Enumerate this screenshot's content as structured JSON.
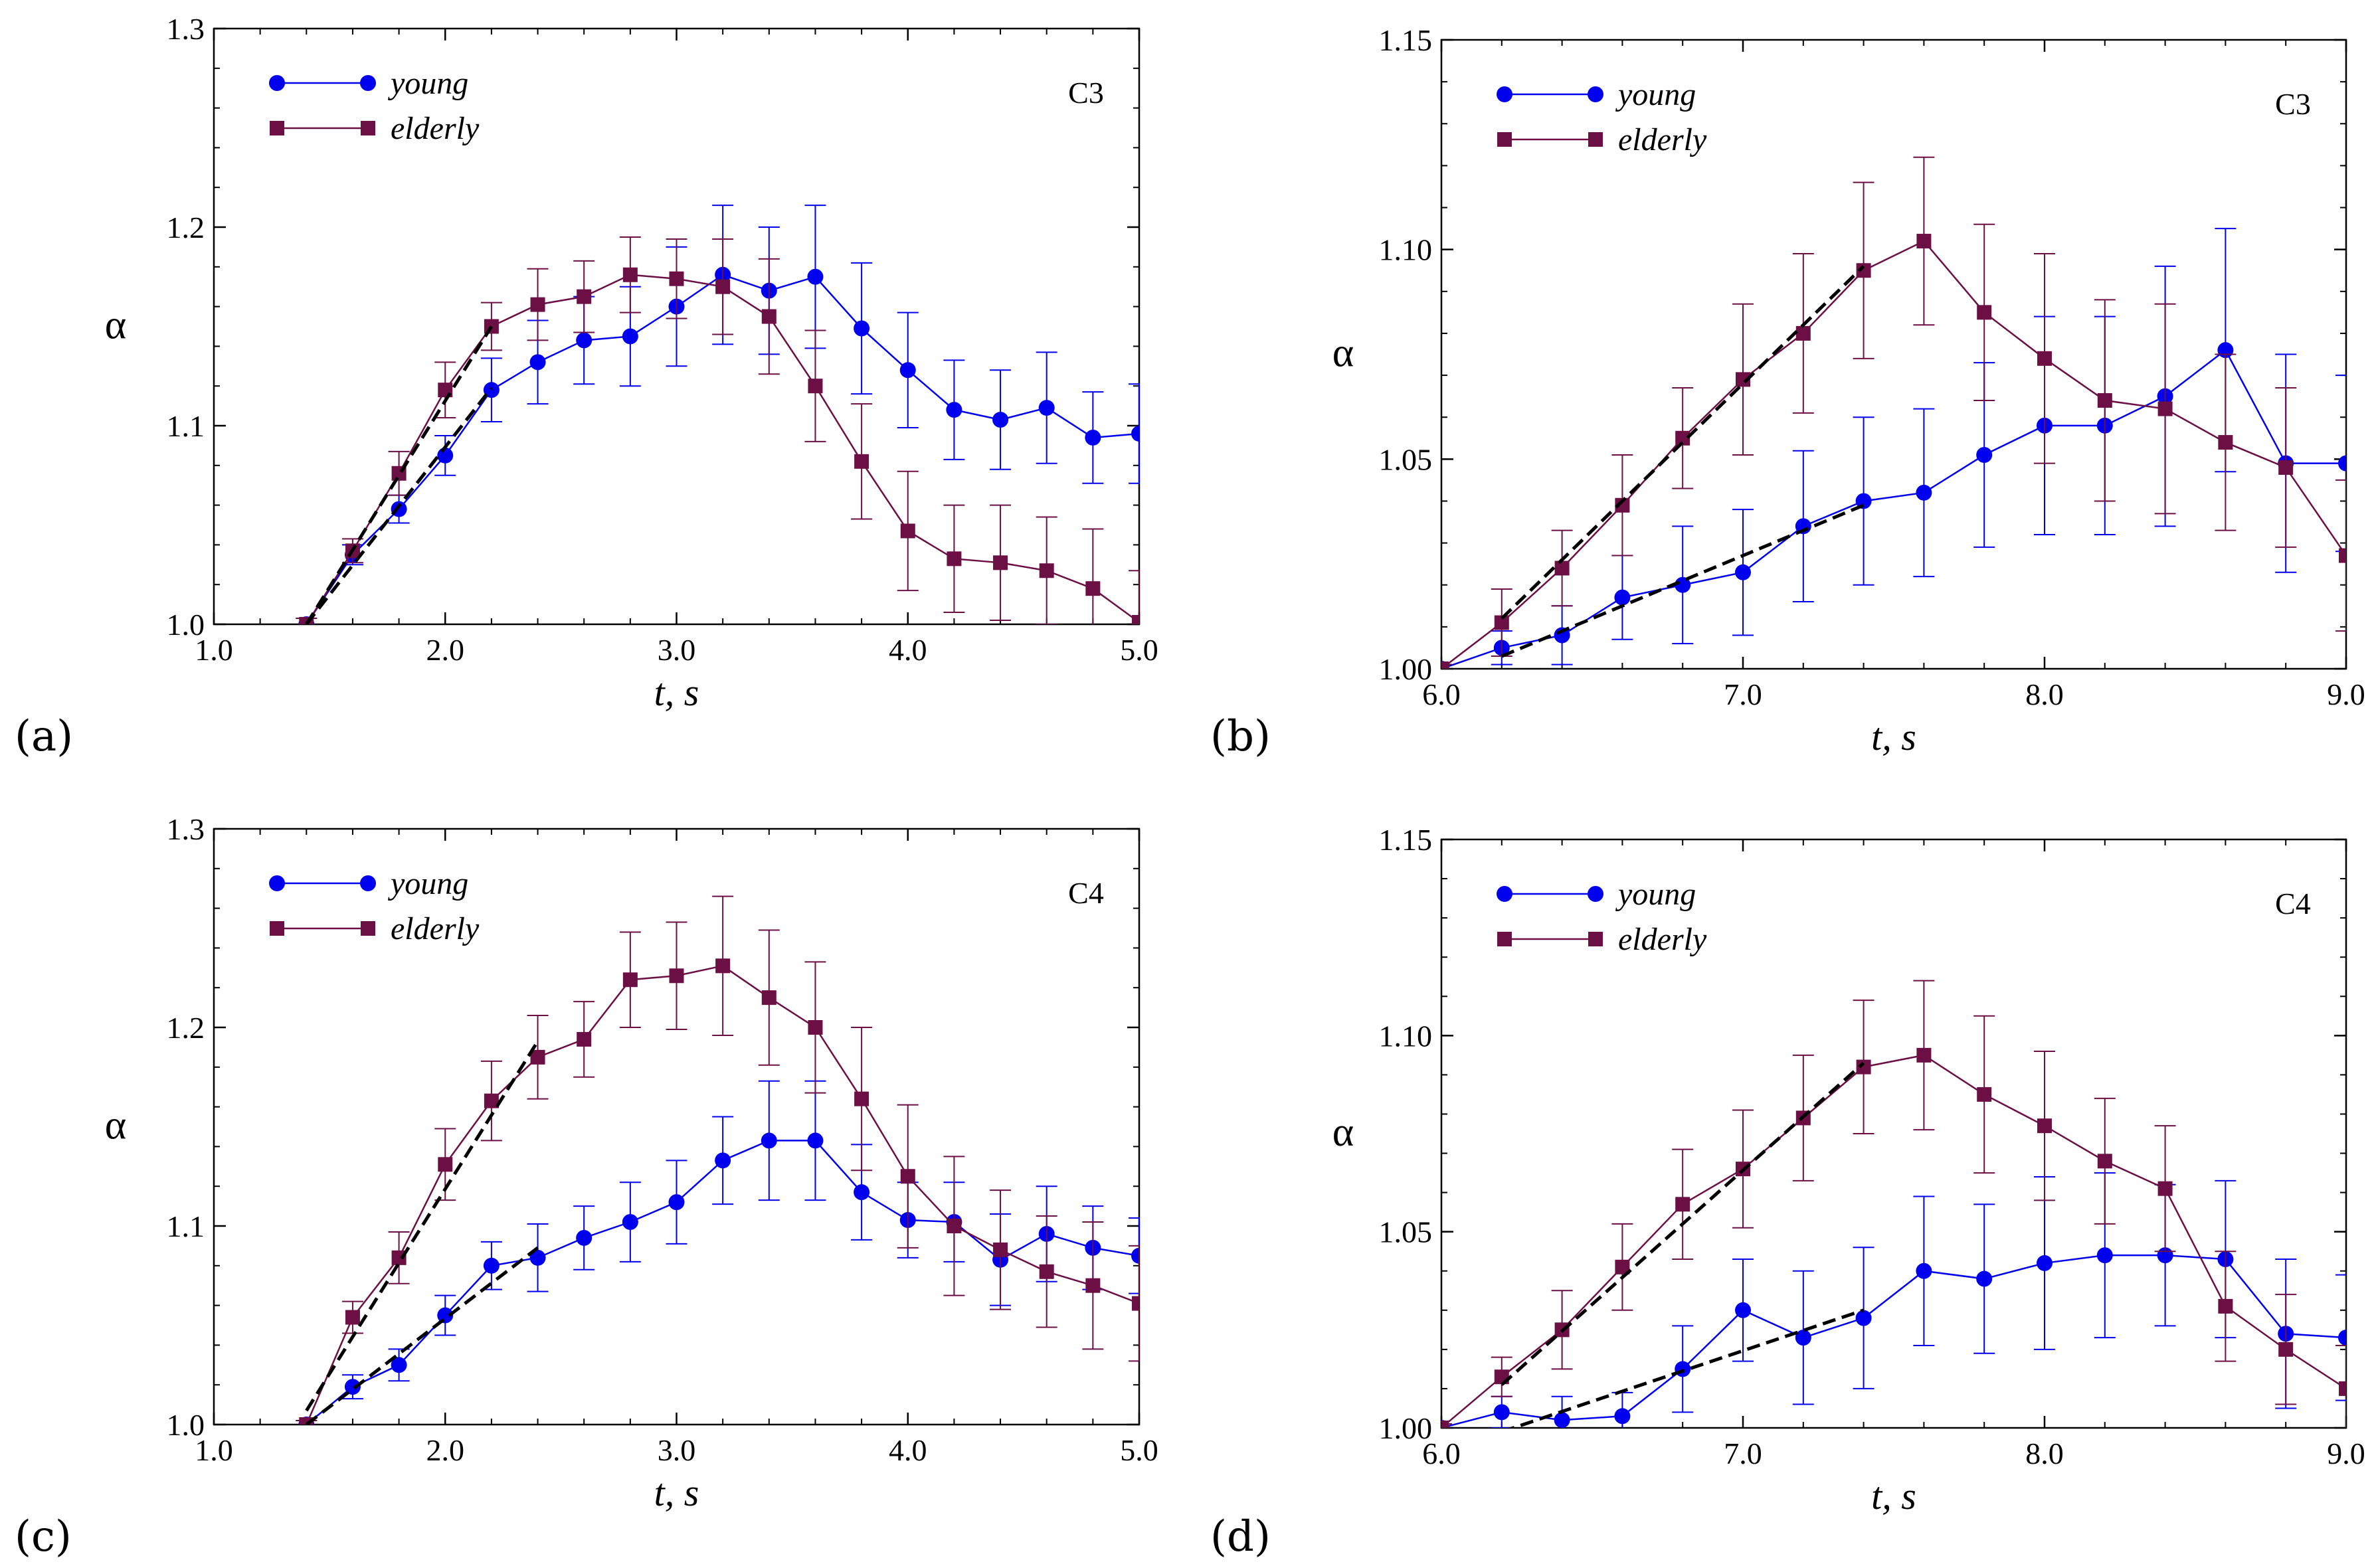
{
  "chart_data": [
    {
      "type": "line",
      "panel_label": "(a)",
      "annotation": "C3",
      "xlabel": "t, s",
      "ylabel": "α",
      "xlim": [
        1.0,
        5.0
      ],
      "ylim": [
        1.0,
        1.3
      ],
      "xticks": [
        1.0,
        2.0,
        3.0,
        4.0,
        5.0
      ],
      "xtick_labels": [
        "1.0",
        "2.0",
        "3.0",
        "4.0",
        "5.0"
      ],
      "yticks": [
        1.0,
        1.1,
        1.2,
        1.3
      ],
      "ytick_labels": [
        "1.0",
        "1.1",
        "1.2",
        "1.3"
      ],
      "legend_position": "top-left",
      "series": [
        {
          "name": "young",
          "color": "#0000ee",
          "marker": "circle",
          "x": [
            1.4,
            1.6,
            1.8,
            2.0,
            2.2,
            2.4,
            2.6,
            2.8,
            3.0,
            3.2,
            3.4,
            3.6,
            3.8,
            4.0,
            4.2,
            4.4,
            4.6,
            4.8,
            5.0
          ],
          "y": [
            1.0,
            1.035,
            1.058,
            1.085,
            1.118,
            1.132,
            1.143,
            1.145,
            1.16,
            1.176,
            1.168,
            1.175,
            1.149,
            1.128,
            1.108,
            1.103,
            1.109,
            1.094,
            1.096
          ],
          "err": [
            0.003,
            0.005,
            0.007,
            0.01,
            0.016,
            0.021,
            0.022,
            0.025,
            0.03,
            0.035,
            0.032,
            0.036,
            0.033,
            0.029,
            0.025,
            0.025,
            0.028,
            0.023,
            0.025
          ]
        },
        {
          "name": "elderly",
          "color": "#6b0f45",
          "marker": "square",
          "x": [
            1.4,
            1.6,
            1.8,
            2.0,
            2.2,
            2.4,
            2.6,
            2.8,
            3.0,
            3.2,
            3.4,
            3.6,
            3.8,
            4.0,
            4.2,
            4.4,
            4.6,
            4.8,
            5.0
          ],
          "y": [
            1.0,
            1.037,
            1.076,
            1.118,
            1.15,
            1.161,
            1.165,
            1.176,
            1.174,
            1.17,
            1.155,
            1.12,
            1.082,
            1.047,
            1.033,
            1.031,
            1.027,
            1.018,
            1.001
          ],
          "err": [
            0.003,
            0.006,
            0.011,
            0.014,
            0.012,
            0.018,
            0.018,
            0.019,
            0.02,
            0.024,
            0.029,
            0.028,
            0.029,
            0.03,
            0.027,
            0.029,
            0.027,
            0.03,
            0.026
          ]
        }
      ],
      "fit_lines": [
        {
          "x": [
            1.4,
            2.2
          ],
          "y": [
            1.0,
            1.15
          ]
        },
        {
          "x": [
            1.4,
            2.2
          ],
          "y": [
            1.0,
            1.119
          ]
        }
      ]
    },
    {
      "type": "line",
      "panel_label": "(b)",
      "annotation": "C3",
      "xlabel": "t, s",
      "ylabel": "α",
      "xlim": [
        6.0,
        9.0
      ],
      "ylim": [
        1.0,
        1.15
      ],
      "xticks": [
        6.0,
        7.0,
        8.0,
        9.0
      ],
      "xtick_labels": [
        "6.0",
        "7.0",
        "8.0",
        "9.0"
      ],
      "yticks": [
        1.0,
        1.05,
        1.1,
        1.15
      ],
      "ytick_labels": [
        "1.00",
        "1.05",
        "1.10",
        "1.15"
      ],
      "legend_position": "top-left",
      "series": [
        {
          "name": "young",
          "color": "#0000ee",
          "marker": "circle",
          "x": [
            6.0,
            6.2,
            6.4,
            6.6,
            6.8,
            7.0,
            7.2,
            7.4,
            7.6,
            7.8,
            8.0,
            8.2,
            8.4,
            8.6,
            8.8,
            9.0
          ],
          "y": [
            1.0,
            1.005,
            1.008,
            1.017,
            1.02,
            1.023,
            1.034,
            1.04,
            1.042,
            1.051,
            1.058,
            1.058,
            1.065,
            1.076,
            1.049,
            1.049
          ],
          "err": [
            0.001,
            0.004,
            0.007,
            0.01,
            0.014,
            0.015,
            0.018,
            0.02,
            0.02,
            0.022,
            0.026,
            0.026,
            0.031,
            0.029,
            0.026,
            0.021
          ]
        },
        {
          "name": "elderly",
          "color": "#6b0f45",
          "marker": "square",
          "x": [
            6.0,
            6.2,
            6.4,
            6.6,
            6.8,
            7.0,
            7.2,
            7.4,
            7.6,
            7.8,
            8.0,
            8.2,
            8.4,
            8.6,
            8.8,
            9.0
          ],
          "y": [
            1.0,
            1.011,
            1.024,
            1.039,
            1.055,
            1.069,
            1.08,
            1.095,
            1.102,
            1.085,
            1.074,
            1.064,
            1.062,
            1.054,
            1.048,
            1.027
          ],
          "err": [
            0.001,
            0.008,
            0.009,
            0.012,
            0.012,
            0.018,
            0.019,
            0.021,
            0.02,
            0.021,
            0.025,
            0.024,
            0.025,
            0.021,
            0.019,
            0.018
          ]
        }
      ],
      "fit_lines": [
        {
          "x": [
            6.2,
            7.4
          ],
          "y": [
            1.012,
            1.096
          ]
        },
        {
          "x": [
            6.2,
            7.4
          ],
          "y": [
            1.003,
            1.039
          ]
        }
      ]
    },
    {
      "type": "line",
      "panel_label": "(c)",
      "annotation": "C4",
      "xlabel": "t, s",
      "ylabel": "α",
      "xlim": [
        1.0,
        5.0
      ],
      "ylim": [
        1.0,
        1.3
      ],
      "xticks": [
        1.0,
        2.0,
        3.0,
        4.0,
        5.0
      ],
      "xtick_labels": [
        "1.0",
        "2.0",
        "3.0",
        "4.0",
        "5.0"
      ],
      "yticks": [
        1.0,
        1.1,
        1.2,
        1.3
      ],
      "ytick_labels": [
        "1.0",
        "1.1",
        "1.2",
        "1.3"
      ],
      "legend_position": "top-left",
      "series": [
        {
          "name": "young",
          "color": "#0000ee",
          "marker": "circle",
          "x": [
            1.4,
            1.6,
            1.8,
            2.0,
            2.2,
            2.4,
            2.6,
            2.8,
            3.0,
            3.2,
            3.4,
            3.6,
            3.8,
            4.0,
            4.2,
            4.4,
            4.6,
            4.8,
            5.0
          ],
          "y": [
            1.0,
            1.019,
            1.03,
            1.055,
            1.08,
            1.084,
            1.094,
            1.102,
            1.112,
            1.133,
            1.143,
            1.143,
            1.117,
            1.103,
            1.102,
            1.083,
            1.096,
            1.089,
            1.085
          ],
          "err": [
            0.002,
            0.006,
            0.008,
            0.01,
            0.012,
            0.017,
            0.016,
            0.02,
            0.021,
            0.022,
            0.03,
            0.03,
            0.024,
            0.019,
            0.02,
            0.023,
            0.024,
            0.021,
            0.019
          ]
        },
        {
          "name": "elderly",
          "color": "#6b0f45",
          "marker": "square",
          "x": [
            1.4,
            1.6,
            1.8,
            2.0,
            2.2,
            2.4,
            2.6,
            2.8,
            3.0,
            3.2,
            3.4,
            3.6,
            3.8,
            4.0,
            4.2,
            4.4,
            4.6,
            4.8,
            5.0
          ],
          "y": [
            1.0,
            1.054,
            1.084,
            1.131,
            1.163,
            1.185,
            1.194,
            1.224,
            1.226,
            1.231,
            1.215,
            1.2,
            1.164,
            1.125,
            1.1,
            1.088,
            1.077,
            1.07,
            1.061
          ],
          "err": [
            0.002,
            0.008,
            0.013,
            0.018,
            0.02,
            0.021,
            0.019,
            0.024,
            0.027,
            0.035,
            0.034,
            0.033,
            0.036,
            0.036,
            0.035,
            0.03,
            0.028,
            0.032,
            0.029
          ]
        }
      ],
      "fit_lines": [
        {
          "x": [
            1.4,
            2.4
          ],
          "y": [
            1.007,
            1.193
          ]
        },
        {
          "x": [
            1.4,
            2.4
          ],
          "y": [
            1.0,
            1.089
          ]
        }
      ]
    },
    {
      "type": "line",
      "panel_label": "(d)",
      "annotation": "C4",
      "xlabel": "t, s",
      "ylabel": "α",
      "xlim": [
        6.0,
        9.0
      ],
      "ylim": [
        1.0,
        1.15
      ],
      "xticks": [
        6.0,
        7.0,
        8.0,
        9.0
      ],
      "xtick_labels": [
        "6.0",
        "7.0",
        "8.0",
        "9.0"
      ],
      "yticks": [
        1.0,
        1.05,
        1.1,
        1.15
      ],
      "ytick_labels": [
        "1.00",
        "1.05",
        "1.10",
        "1.15"
      ],
      "legend_position": "top-left",
      "series": [
        {
          "name": "young",
          "color": "#0000ee",
          "marker": "circle",
          "x": [
            6.0,
            6.2,
            6.4,
            6.6,
            6.8,
            7.0,
            7.2,
            7.4,
            7.6,
            7.8,
            8.0,
            8.2,
            8.4,
            8.6,
            8.8,
            9.0
          ],
          "y": [
            1.0,
            1.004,
            1.002,
            1.003,
            1.015,
            1.03,
            1.023,
            1.028,
            1.04,
            1.038,
            1.042,
            1.044,
            1.044,
            1.043,
            1.024,
            1.023
          ],
          "err": [
            0.001,
            0.004,
            0.006,
            0.006,
            0.011,
            0.013,
            0.017,
            0.018,
            0.019,
            0.019,
            0.022,
            0.021,
            0.018,
            0.02,
            0.019,
            0.016
          ]
        },
        {
          "name": "elderly",
          "color": "#6b0f45",
          "marker": "square",
          "x": [
            6.0,
            6.2,
            6.4,
            6.6,
            6.8,
            7.0,
            7.2,
            7.4,
            7.6,
            7.8,
            8.0,
            8.2,
            8.4,
            8.6,
            8.8,
            9.0
          ],
          "y": [
            1.0,
            1.013,
            1.025,
            1.041,
            1.057,
            1.066,
            1.079,
            1.092,
            1.095,
            1.085,
            1.077,
            1.068,
            1.061,
            1.031,
            1.02,
            1.01
          ],
          "err": [
            0.001,
            0.005,
            0.01,
            0.011,
            0.014,
            0.015,
            0.016,
            0.017,
            0.019,
            0.02,
            0.019,
            0.016,
            0.016,
            0.014,
            0.014,
            0.011
          ]
        }
      ],
      "fit_lines": [
        {
          "x": [
            6.2,
            7.4
          ],
          "y": [
            1.011,
            1.093
          ]
        },
        {
          "x": [
            6.2,
            7.4
          ],
          "y": [
            0.999,
            1.03
          ]
        }
      ]
    }
  ]
}
